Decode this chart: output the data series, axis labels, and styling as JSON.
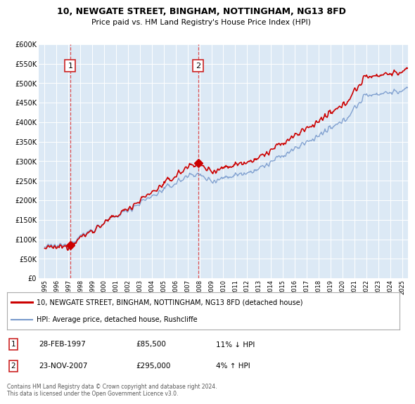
{
  "title": "10, NEWGATE STREET, BINGHAM, NOTTINGHAM, NG13 8FD",
  "subtitle": "Price paid vs. HM Land Registry's House Price Index (HPI)",
  "background_color": "#dce9f5",
  "plot_bg_color": "#dce9f5",
  "y_min": 0,
  "y_max": 600000,
  "y_ticks": [
    0,
    50000,
    100000,
    150000,
    200000,
    250000,
    300000,
    350000,
    400000,
    450000,
    500000,
    550000,
    600000
  ],
  "x_start_year": 1995,
  "x_end_year": 2025,
  "sale1_date": 1997.15,
  "sale1_price": 85500,
  "sale1_label": "1",
  "sale2_date": 2007.9,
  "sale2_price": 295000,
  "sale2_label": "2",
  "legend_entries": [
    {
      "label": "10, NEWGATE STREET, BINGHAM, NOTTINGHAM, NG13 8FD (detached house)",
      "color": "#cc0000",
      "lw": 2
    },
    {
      "label": "HPI: Average price, detached house, Rushcliffe",
      "color": "#7799cc",
      "lw": 1.5
    }
  ],
  "annotation1": {
    "num": "1",
    "date": "28-FEB-1997",
    "price": "£85,500",
    "hpi": "11% ↓ HPI"
  },
  "annotation2": {
    "num": "2",
    "date": "23-NOV-2007",
    "price": "£295,000",
    "hpi": "4% ↑ HPI"
  },
  "footer": "Contains HM Land Registry data © Crown copyright and database right 2024.\nThis data is licensed under the Open Government Licence v3.0.",
  "red_line_color": "#cc0000",
  "blue_line_color": "#7799cc",
  "dashed_line_color": "#dd3333"
}
